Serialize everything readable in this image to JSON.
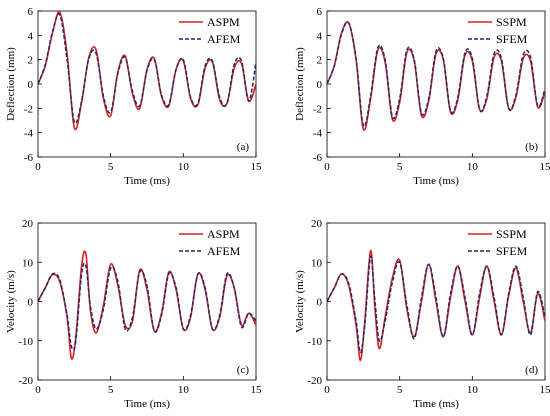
{
  "chart_data": [
    {
      "type": "line",
      "panel_tag": "(a)",
      "xlabel": "Time (ms)",
      "ylabel": "Deflection (mm)",
      "xlim": [
        0,
        15
      ],
      "ylim": [
        -6,
        6
      ],
      "xticks": [
        0,
        5,
        10,
        15
      ],
      "yticks": [
        -6,
        -4,
        -2,
        0,
        2,
        4,
        6
      ],
      "legend_position": "top-right",
      "x": [
        0,
        0.5,
        1,
        1.5,
        2,
        2.5,
        3,
        3.5,
        4,
        4.5,
        5,
        5.5,
        6,
        6.5,
        7,
        7.5,
        8,
        8.5,
        9,
        9.5,
        10,
        10.5,
        11,
        11.5,
        12,
        12.5,
        13,
        13.5,
        14,
        14.5,
        15
      ],
      "series": [
        {
          "name": "ASPM",
          "color": "#d62020",
          "dash": "solid",
          "values": [
            0,
            1.5,
            4.2,
            5.9,
            2.5,
            -3.6,
            -1.5,
            2.2,
            2.8,
            -1.2,
            -2.6,
            1.0,
            2.3,
            -0.8,
            -2.0,
            1.2,
            2.1,
            -1.0,
            -1.8,
            1.2,
            1.9,
            -1.2,
            -1.7,
            1.3,
            1.8,
            -1.3,
            -1.6,
            1.3,
            1.7,
            -1.4,
            0
          ]
        },
        {
          "name": "AFEM",
          "color": "#1a2a6e",
          "dash": "dashed",
          "values": [
            0,
            1.6,
            4.3,
            5.7,
            2.0,
            -3.1,
            -1.4,
            2.1,
            2.5,
            -1.0,
            -2.3,
            0.9,
            2.2,
            -0.6,
            -1.8,
            1.1,
            2.0,
            -0.9,
            -1.7,
            1.2,
            2.0,
            -1.1,
            -1.6,
            1.5,
            1.9,
            -1.1,
            -1.6,
            1.6,
            1.9,
            -1.4,
            1.8
          ]
        }
      ]
    },
    {
      "type": "line",
      "panel_tag": "(b)",
      "xlabel": "Time (ms)",
      "ylabel": "Deflection (mm)",
      "xlim": [
        0,
        15
      ],
      "ylim": [
        -6,
        6
      ],
      "xticks": [
        0,
        5,
        10,
        15
      ],
      "yticks": [
        -6,
        -4,
        -2,
        0,
        2,
        4,
        6
      ],
      "legend_position": "top-right",
      "x": [
        0,
        0.5,
        1,
        1.5,
        2,
        2.5,
        3,
        3.5,
        4,
        4.5,
        5,
        5.5,
        6,
        6.5,
        7,
        7.5,
        8,
        8.5,
        9,
        9.5,
        10,
        10.5,
        11,
        11.5,
        12,
        12.5,
        13,
        13.5,
        14,
        14.5,
        15
      ],
      "series": [
        {
          "name": "SSPM",
          "color": "#d62020",
          "dash": "solid",
          "values": [
            0,
            1.5,
            4.2,
            5.0,
            2.0,
            -3.7,
            -1.2,
            2.8,
            1.8,
            -2.9,
            -1.5,
            2.6,
            1.9,
            -2.6,
            -1.4,
            2.5,
            2.0,
            -2.3,
            -1.3,
            2.4,
            1.9,
            -2.1,
            -1.2,
            2.2,
            1.9,
            -2.0,
            -1.1,
            2.1,
            1.9,
            -1.9,
            -0.6
          ]
        },
        {
          "name": "SFEM",
          "color": "#1a2a6e",
          "dash": "dashed",
          "values": [
            0,
            1.5,
            4.1,
            5.0,
            2.1,
            -3.4,
            -1.0,
            3.0,
            2.0,
            -2.7,
            -1.2,
            2.8,
            2.0,
            -2.4,
            -1.2,
            2.7,
            2.1,
            -2.2,
            -1.1,
            2.6,
            2.1,
            -2.1,
            -1.0,
            2.5,
            2.1,
            -2.0,
            -0.9,
            2.4,
            2.2,
            -1.8,
            -0.4
          ]
        }
      ]
    },
    {
      "type": "line",
      "panel_tag": "(c)",
      "xlabel": "Time (ms)",
      "ylabel": "Velocity (m/s)",
      "xlim": [
        0,
        15
      ],
      "ylim": [
        -20,
        20
      ],
      "xticks": [
        0,
        5,
        10,
        15
      ],
      "yticks": [
        -20,
        -10,
        0,
        10,
        20
      ],
      "legend_position": "top-right",
      "x": [
        0,
        0.5,
        1,
        1.5,
        2,
        2.3,
        2.6,
        3,
        3.3,
        3.6,
        4,
        4.5,
        5,
        5.5,
        6,
        6.5,
        7,
        7.5,
        8,
        8.5,
        9,
        9.5,
        10,
        10.5,
        11,
        11.5,
        12,
        12.5,
        13,
        13.5,
        14,
        14.5,
        15
      ],
      "series": [
        {
          "name": "ASPM",
          "color": "#d62020",
          "dash": "solid",
          "values": [
            0,
            3.5,
            6.8,
            5.0,
            -4.0,
            -14.5,
            -9.0,
            9.0,
            12.0,
            -2.0,
            -8.0,
            -1.0,
            9.5,
            4.0,
            -6.0,
            -5.0,
            8.0,
            3.0,
            -7.5,
            -3.0,
            7.5,
            3.0,
            -7.0,
            -4.0,
            7.0,
            3.0,
            -7.0,
            -4.0,
            6.5,
            3.5,
            -6.0,
            -3.0,
            -6.0
          ]
        },
        {
          "name": "AFEM",
          "color": "#1a2a6e",
          "dash": "dashed",
          "values": [
            0,
            3.5,
            7.0,
            5.5,
            -3.5,
            -11.5,
            -10.0,
            7.0,
            9.0,
            -1.0,
            -7.0,
            -2.0,
            8.5,
            5.0,
            -7.0,
            -4.0,
            7.5,
            4.0,
            -7.5,
            -3.5,
            7.0,
            3.5,
            -7.0,
            -3.5,
            7.0,
            3.5,
            -7.0,
            -3.5,
            7.0,
            3.5,
            -6.5,
            -3.0,
            -5.0
          ]
        }
      ]
    },
    {
      "type": "line",
      "panel_tag": "(d)",
      "xlabel": "Time (ms)",
      "ylabel": "Velocity (m/s)",
      "xlim": [
        0,
        15
      ],
      "ylim": [
        -20,
        20
      ],
      "xticks": [
        0,
        5,
        10,
        15
      ],
      "yticks": [
        -20,
        -10,
        0,
        10,
        20
      ],
      "legend_position": "top-right",
      "x": [
        0,
        0.5,
        1,
        1.5,
        2,
        2.3,
        2.6,
        3,
        3.3,
        3.6,
        4,
        4.5,
        5,
        5.5,
        6,
        6.5,
        7,
        7.5,
        8,
        8.5,
        9,
        9.5,
        10,
        10.5,
        11,
        11.5,
        12,
        12.5,
        13,
        13.5,
        14,
        14.5,
        15
      ],
      "series": [
        {
          "name": "SSPM",
          "color": "#d62020",
          "dash": "solid",
          "values": [
            0,
            3.5,
            7.0,
            4.0,
            -6.0,
            -15.0,
            -5.0,
            13.0,
            -2.0,
            -12.0,
            -4.0,
            6.0,
            10.5,
            -2.0,
            -9.0,
            0.0,
            9.5,
            0.0,
            -9.0,
            1.0,
            9.0,
            0.0,
            -8.5,
            1.0,
            9.0,
            0.0,
            -8.5,
            1.5,
            8.5,
            0.0,
            -8.0,
            2.0,
            -5.0
          ]
        },
        {
          "name": "SFEM",
          "color": "#1a2a6e",
          "dash": "dashed",
          "values": [
            0,
            3.5,
            7.0,
            4.5,
            -5.0,
            -13.0,
            -6.0,
            11.5,
            0.0,
            -10.0,
            -5.0,
            5.0,
            10.0,
            -1.0,
            -9.5,
            1.0,
            9.5,
            1.0,
            -9.0,
            2.0,
            9.0,
            1.0,
            -8.5,
            2.0,
            9.0,
            1.0,
            -8.5,
            2.0,
            9.0,
            1.0,
            -8.5,
            2.5,
            -4.0
          ]
        }
      ]
    }
  ]
}
